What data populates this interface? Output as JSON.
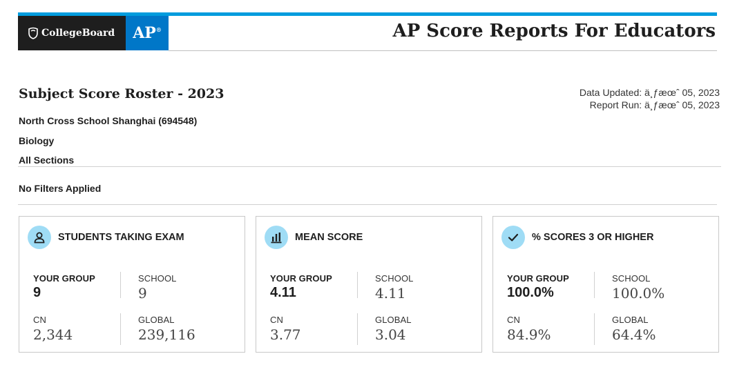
{
  "header": {
    "brand_name": "CollegeBoard",
    "product_badge": "AP",
    "app_title": "AP Score Reports For Educators",
    "colors": {
      "top_bar": "#009cde",
      "college_board_bg": "#1e1e1e",
      "ap_bg": "#0077c8",
      "icon_circle": "#9fdcf5"
    }
  },
  "report": {
    "title": "Subject Score Roster - 2023",
    "data_updated": "Data Updated: ä¸ƒæœˆ 05, 2023",
    "report_run": "Report Run: ä¸ƒæœˆ 05, 2023",
    "school": "North Cross School Shanghai (694548)",
    "subject": "Biology",
    "sections": "All Sections",
    "filters": "No Filters Applied"
  },
  "cards": [
    {
      "icon": "person-icon",
      "title": "STUDENTS TAKING EXAM",
      "your_group_label": "YOUR GROUP",
      "your_group_value": "9",
      "school_label": "SCHOOL",
      "school_value": "9",
      "cn_label": "CN",
      "cn_value": "2,344",
      "global_label": "GLOBAL",
      "global_value": "239,116"
    },
    {
      "icon": "bar-chart-icon",
      "title": "MEAN SCORE",
      "your_group_label": "YOUR GROUP",
      "your_group_value": "4.11",
      "school_label": "SCHOOL",
      "school_value": "4.11",
      "cn_label": "CN",
      "cn_value": "3.77",
      "global_label": "GLOBAL",
      "global_value": "3.04"
    },
    {
      "icon": "checkmark-icon",
      "title": "% SCORES 3 OR HIGHER",
      "your_group_label": "YOUR GROUP",
      "your_group_value": "100.0%",
      "school_label": "SCHOOL",
      "school_value": "100.0%",
      "cn_label": "CN",
      "cn_value": "84.9%",
      "global_label": "GLOBAL",
      "global_value": "64.4%"
    }
  ]
}
